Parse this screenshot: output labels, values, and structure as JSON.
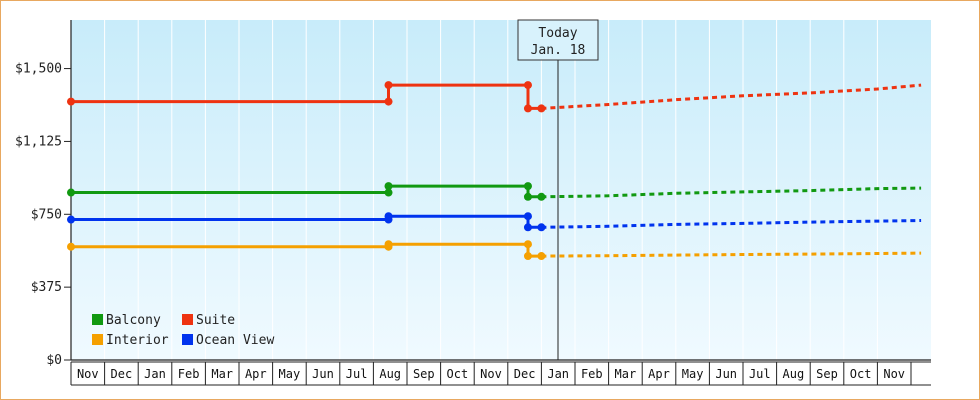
{
  "chart_data": {
    "type": "line",
    "today_label": "Today",
    "today_date": "Jan. 18",
    "y_ticks": [
      "$0",
      "$375",
      "$750",
      "$1,125",
      "$1,500"
    ],
    "y_tick_values": [
      0,
      375,
      750,
      1125,
      1500
    ],
    "ylim": [
      0,
      1750
    ],
    "months": [
      "Nov",
      "Dec",
      "Jan",
      "Feb",
      "Mar",
      "Apr",
      "May",
      "Jun",
      "Jul",
      "Aug",
      "Sep",
      "Oct",
      "Nov",
      "Dec",
      "Jan",
      "Feb",
      "Mar",
      "Apr",
      "May",
      "Jun",
      "Jul",
      "Aug",
      "Sep",
      "Oct",
      "Nov"
    ],
    "grid": true,
    "legend_position": "bottom-left",
    "series": [
      {
        "name": "Balcony",
        "color": "#119911",
        "history": [
          [
            0,
            862
          ],
          [
            9.45,
            862
          ],
          [
            9.45,
            895
          ],
          [
            13.6,
            895
          ],
          [
            13.6,
            840
          ],
          [
            14.0,
            840
          ]
        ],
        "forecast": [
          [
            14.0,
            840
          ],
          [
            16,
            845
          ],
          [
            18,
            858
          ],
          [
            20,
            865
          ],
          [
            22,
            872
          ],
          [
            24,
            882
          ],
          [
            25.3,
            885
          ]
        ]
      },
      {
        "name": "Suite",
        "color": "#ee3311",
        "history": [
          [
            0,
            1330
          ],
          [
            9.45,
            1330
          ],
          [
            9.45,
            1415
          ],
          [
            13.6,
            1415
          ],
          [
            13.6,
            1295
          ],
          [
            14.0,
            1295
          ]
        ],
        "forecast": [
          [
            14.0,
            1295
          ],
          [
            16,
            1315
          ],
          [
            18,
            1340
          ],
          [
            20,
            1360
          ],
          [
            22,
            1375
          ],
          [
            24,
            1395
          ],
          [
            25.3,
            1415
          ]
        ]
      },
      {
        "name": "Interior",
        "color": "#f5a000",
        "history": [
          [
            0,
            583
          ],
          [
            9.45,
            583
          ],
          [
            9.45,
            596
          ],
          [
            13.6,
            596
          ],
          [
            13.6,
            535
          ],
          [
            14.0,
            535
          ]
        ],
        "forecast": [
          [
            14.0,
            535
          ],
          [
            16,
            537
          ],
          [
            18,
            540
          ],
          [
            20,
            543
          ],
          [
            22,
            545
          ],
          [
            24,
            548
          ],
          [
            25.3,
            550
          ]
        ]
      },
      {
        "name": "Ocean View",
        "color": "#0033ee",
        "history": [
          [
            0,
            723
          ],
          [
            9.45,
            723
          ],
          [
            9.45,
            740
          ],
          [
            13.6,
            740
          ],
          [
            13.6,
            683
          ],
          [
            14.0,
            683
          ]
        ],
        "forecast": [
          [
            14.0,
            683
          ],
          [
            16,
            688
          ],
          [
            18,
            698
          ],
          [
            20,
            703
          ],
          [
            22,
            710
          ],
          [
            24,
            715
          ],
          [
            25.3,
            718
          ]
        ]
      }
    ]
  }
}
